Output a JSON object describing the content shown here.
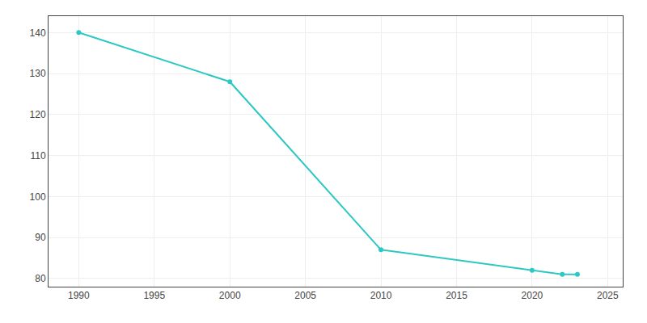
{
  "chart_data": {
    "type": "line",
    "x": [
      1990,
      2000,
      2010,
      2020,
      2022,
      2023
    ],
    "values": [
      140,
      128,
      87,
      82,
      81,
      81
    ],
    "color": "#2ec8c4",
    "marker": "circle",
    "xlim": [
      1988,
      2026
    ],
    "ylim": [
      78,
      144
    ],
    "xticks": [
      1990,
      1995,
      2000,
      2005,
      2010,
      2015,
      2020,
      2025
    ],
    "yticks": [
      80,
      90,
      100,
      110,
      120,
      130,
      140
    ],
    "grid": true
  }
}
